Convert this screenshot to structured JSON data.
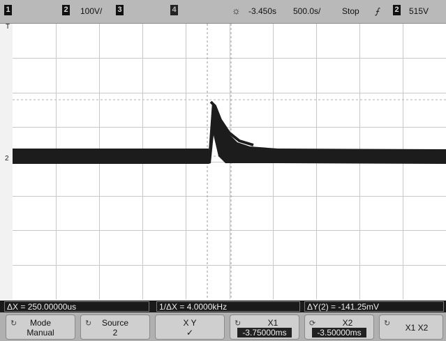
{
  "topbar": {
    "ch1_num": "1",
    "ch2_num": "2",
    "ch2_scale": "100",
    "ch2_scale_unit": "V/",
    "ch3_num": "3",
    "ch4_num": "4",
    "trig_icon": "sun-icon",
    "time_offset": "-3.450",
    "time_offset_unit": "s",
    "timebase": "500.0",
    "timebase_unit": "s/",
    "run_state": "Stop",
    "trig_edge": "⨍",
    "trig_ch": "2",
    "trig_level": "515",
    "trig_level_unit": "V"
  },
  "screen": {
    "trigger_marker": "T",
    "channel_marker": "2",
    "grid": {
      "divisions_x": 10,
      "divisions_y": 8
    }
  },
  "readout": {
    "delta_x": "ΔX = 250.00000us",
    "inv_delta_x": "1/ΔX = 4.0000kHz",
    "delta_y": "ΔY(2) = -141.25mV"
  },
  "softkeys": [
    {
      "line1": "Mode",
      "line2": "Manual"
    },
    {
      "line1": "Source",
      "line2": "2"
    },
    {
      "line1": "X      Y",
      "line2": "✓"
    },
    {
      "line1": "X1",
      "line2": "-3.75000ms"
    },
    {
      "line1": "X2",
      "line2": "-3.50000ms"
    },
    {
      "line1": "X1 X2",
      "line2": ""
    }
  ]
}
